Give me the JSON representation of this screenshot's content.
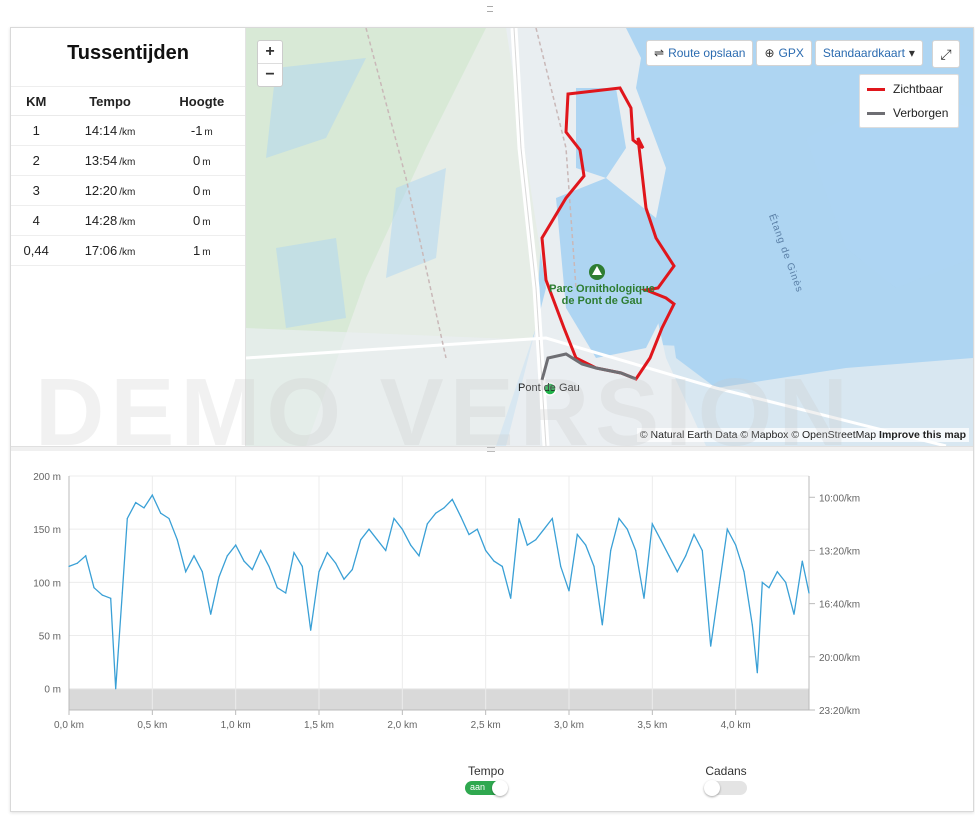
{
  "splits": {
    "title": "Tussentijden",
    "headers": {
      "km": "KM",
      "tempo": "Tempo",
      "height": "Hoogte"
    },
    "rows": [
      {
        "km": "1",
        "tempo": "14:14",
        "tempo_unit": "/km",
        "height": "-1",
        "height_unit": "m"
      },
      {
        "km": "2",
        "tempo": "13:54",
        "tempo_unit": "/km",
        "height": "0",
        "height_unit": "m"
      },
      {
        "km": "3",
        "tempo": "12:20",
        "tempo_unit": "/km",
        "height": "0",
        "height_unit": "m"
      },
      {
        "km": "4",
        "tempo": "14:28",
        "tempo_unit": "/km",
        "height": "0",
        "height_unit": "m"
      },
      {
        "km": "0,44",
        "tempo": "17:06",
        "tempo_unit": "/km",
        "height": "1",
        "height_unit": "m"
      }
    ]
  },
  "map": {
    "zoom_in": "+",
    "zoom_out": "−",
    "toolbar": {
      "save_route": "Route opslaan",
      "gpx": "GPX",
      "map_style": "Standaardkaart"
    },
    "fullscreen_icon": "fullscreen-icon",
    "legend": [
      {
        "label": "Zichtbaar",
        "color": "#e0161c"
      },
      {
        "label": "Verborgen",
        "color": "#6e6e73"
      }
    ],
    "poi_label_line1": "Parc Ornithologique",
    "poi_label_line2": "de Pont de Gau",
    "place_label": "Pont de Gau",
    "water_label": "Étang de Ginès",
    "attribution": "© Natural Earth Data © Mapbox © OpenStreetMap",
    "attribution_link": "Improve this map",
    "colors": {
      "water": "#aed5f2",
      "land": "#e9eef1",
      "marsh": "#d4e8d0",
      "route": "#e0161c",
      "hidden_route": "#6e6e73",
      "poi": "#2e7d32"
    }
  },
  "watermark": "DEMO VERSION",
  "chart_data": {
    "type": "line",
    "x_unit": "km",
    "xlim": [
      0,
      4.44
    ],
    "x_ticks": [
      "0,0 km",
      "0,5 km",
      "1,0 km",
      "1,5 km",
      "2,0 km",
      "2,5 km",
      "3,0 km",
      "3,5 km",
      "4,0 km"
    ],
    "y_left_ticks": [
      "200 m",
      "150 m",
      "100 m",
      "50 m",
      "0 m"
    ],
    "y_left_lim": [
      -20,
      200
    ],
    "y_right_ticks": [
      "10:00/km",
      "13:20/km",
      "16:40/km",
      "20:00/km",
      "23:20/km"
    ],
    "series": [
      {
        "axis": "right",
        "color": "#3aa0d6",
        "x": [
          0,
          0.05,
          0.1,
          0.15,
          0.2,
          0.25,
          0.28,
          0.32,
          0.35,
          0.4,
          0.45,
          0.5,
          0.55,
          0.6,
          0.65,
          0.7,
          0.75,
          0.8,
          0.85,
          0.9,
          0.95,
          1.0,
          1.05,
          1.1,
          1.15,
          1.2,
          1.25,
          1.3,
          1.35,
          1.4,
          1.45,
          1.5,
          1.55,
          1.6,
          1.65,
          1.7,
          1.75,
          1.8,
          1.85,
          1.9,
          1.95,
          2.0,
          2.05,
          2.1,
          2.15,
          2.2,
          2.25,
          2.3,
          2.35,
          2.4,
          2.45,
          2.5,
          2.55,
          2.6,
          2.65,
          2.7,
          2.75,
          2.8,
          2.85,
          2.9,
          2.95,
          3.0,
          3.05,
          3.1,
          3.15,
          3.2,
          3.25,
          3.3,
          3.35,
          3.4,
          3.45,
          3.5,
          3.55,
          3.6,
          3.65,
          3.7,
          3.75,
          3.8,
          3.85,
          3.9,
          3.95,
          4.0,
          4.05,
          4.1,
          4.13,
          4.16,
          4.2,
          4.25,
          4.3,
          4.35,
          4.4,
          4.44
        ],
        "y": [
          115,
          118,
          125,
          95,
          88,
          85,
          0,
          90,
          160,
          175,
          170,
          182,
          165,
          160,
          140,
          110,
          125,
          110,
          70,
          105,
          125,
          135,
          120,
          112,
          130,
          115,
          95,
          90,
          128,
          115,
          55,
          110,
          128,
          118,
          103,
          112,
          140,
          150,
          140,
          130,
          160,
          150,
          135,
          125,
          155,
          165,
          170,
          178,
          162,
          145,
          150,
          130,
          120,
          115,
          85,
          160,
          135,
          140,
          150,
          160,
          115,
          92,
          145,
          135,
          115,
          60,
          130,
          160,
          150,
          130,
          85,
          155,
          140,
          125,
          110,
          125,
          145,
          130,
          40,
          95,
          150,
          135,
          110,
          60,
          15,
          100,
          95,
          110,
          100,
          70,
          120,
          90
        ]
      }
    ]
  },
  "toggles": [
    {
      "label": "Tempo",
      "state": "aan",
      "on": true
    },
    {
      "label": "Cadans",
      "state": "",
      "on": false
    }
  ]
}
